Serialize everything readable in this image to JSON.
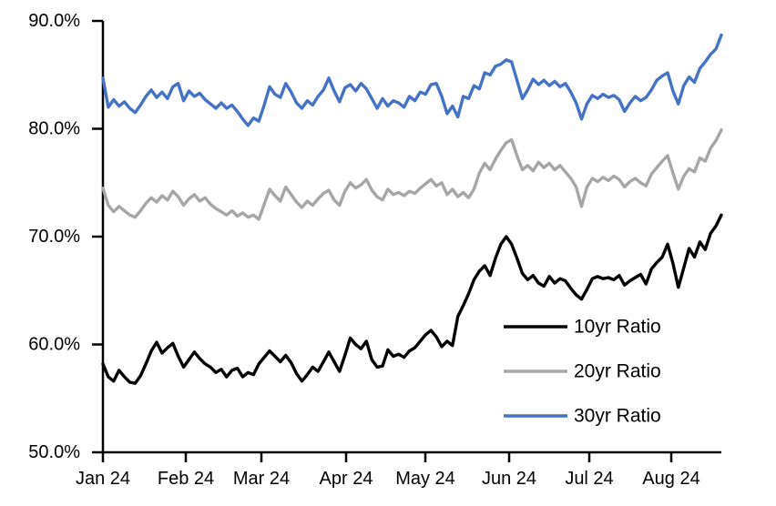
{
  "chart_data": {
    "type": "line",
    "title": "",
    "xlabel": "",
    "ylabel": "",
    "ylim": [
      50,
      90
    ],
    "y_tick_labels": [
      "90.0%",
      "80.0%",
      "70.0%",
      "60.0%",
      "50.0%"
    ],
    "y_tick_values": [
      90,
      80,
      70,
      60,
      50
    ],
    "x_tick_labels": [
      "Jan 24",
      "Feb 24",
      "Mar 24",
      "Apr 24",
      "May 24",
      "Jun 24",
      "Jul 24",
      "Aug 24"
    ],
    "x_range": "daily, Jan 2024 through mid-Aug 2024",
    "grid": "off",
    "legend_position": "inside-right-bottom",
    "axis_color": "#000000",
    "series": [
      {
        "name": "10yr Ratio",
        "color": "#000000",
        "values": [
          58.2,
          57.0,
          56.6,
          57.6,
          57.0,
          56.5,
          56.4,
          57.1,
          58.2,
          59.4,
          60.2,
          59.2,
          59.7,
          60.1,
          58.9,
          57.9,
          58.6,
          59.3,
          58.7,
          58.2,
          57.9,
          57.4,
          57.7,
          57.0,
          57.6,
          57.8,
          57.0,
          57.4,
          57.2,
          58.2,
          58.8,
          59.4,
          58.9,
          58.4,
          59.0,
          58.3,
          57.3,
          56.6,
          57.2,
          57.9,
          57.5,
          58.4,
          59.3,
          58.4,
          57.5,
          59.0,
          60.6,
          60.0,
          59.6,
          60.3,
          58.6,
          57.9,
          58.0,
          59.5,
          58.9,
          59.1,
          58.8,
          59.4,
          59.7,
          60.3,
          60.9,
          61.3,
          60.7,
          59.8,
          60.3,
          59.9,
          62.6,
          63.6,
          64.7,
          66.0,
          66.8,
          67.3,
          66.4,
          68.0,
          69.3,
          70.0,
          69.3,
          68.0,
          66.6,
          66.0,
          66.4,
          65.7,
          65.4,
          66.3,
          65.7,
          66.1,
          65.9,
          65.2,
          64.6,
          64.2,
          65.1,
          66.1,
          66.3,
          66.1,
          66.2,
          66.0,
          66.4,
          65.5,
          65.9,
          66.2,
          66.5,
          65.6,
          67.0,
          67.6,
          68.1,
          69.3,
          67.5,
          65.3,
          67.1,
          68.9,
          68.1,
          69.5,
          68.8,
          70.3,
          71.0,
          72.0
        ]
      },
      {
        "name": "20yr Ratio",
        "color": "#A6A6A6",
        "values": [
          74.5,
          72.9,
          72.3,
          72.8,
          72.4,
          72.0,
          71.8,
          72.4,
          73.1,
          73.6,
          73.2,
          73.8,
          73.4,
          74.2,
          73.7,
          72.9,
          73.5,
          73.9,
          73.3,
          73.6,
          73.0,
          72.6,
          72.3,
          72.0,
          72.4,
          71.9,
          72.2,
          71.8,
          72.0,
          71.6,
          73.0,
          74.4,
          73.8,
          73.3,
          74.6,
          73.9,
          73.2,
          72.7,
          73.3,
          72.9,
          73.5,
          74.0,
          74.3,
          73.4,
          72.9,
          74.2,
          75.0,
          74.5,
          74.8,
          75.3,
          74.3,
          73.7,
          73.4,
          74.4,
          73.9,
          74.1,
          73.8,
          74.2,
          74.0,
          74.5,
          74.9,
          75.3,
          74.7,
          75.0,
          73.9,
          74.4,
          73.7,
          74.1,
          73.6,
          74.4,
          75.9,
          76.8,
          76.2,
          77.2,
          78.0,
          78.7,
          79.0,
          77.5,
          76.2,
          76.6,
          76.1,
          76.9,
          76.4,
          76.8,
          76.2,
          76.6,
          76.0,
          75.4,
          74.6,
          72.8,
          74.6,
          75.4,
          75.1,
          75.5,
          75.2,
          75.6,
          75.3,
          74.6,
          75.1,
          75.4,
          75.0,
          74.7,
          75.8,
          76.4,
          77.0,
          77.5,
          75.9,
          74.4,
          75.6,
          76.3,
          76.0,
          77.3,
          77.0,
          78.2,
          78.9,
          79.9
        ]
      },
      {
        "name": "30yr Ratio",
        "color": "#4472C4",
        "values": [
          84.7,
          82.0,
          82.7,
          82.1,
          82.5,
          81.9,
          81.5,
          82.2,
          83.0,
          83.6,
          82.9,
          83.4,
          82.8,
          83.9,
          84.2,
          82.6,
          83.5,
          83.0,
          83.3,
          82.7,
          82.3,
          81.9,
          82.4,
          81.9,
          82.2,
          81.6,
          80.9,
          80.3,
          81.0,
          80.7,
          82.2,
          83.9,
          83.2,
          82.9,
          84.2,
          83.4,
          82.4,
          81.9,
          82.6,
          82.2,
          83.0,
          83.6,
          84.7,
          83.5,
          82.5,
          83.8,
          84.1,
          83.5,
          84.2,
          83.7,
          82.8,
          81.9,
          82.8,
          82.1,
          82.6,
          82.4,
          82.0,
          83.0,
          82.6,
          83.4,
          83.2,
          84.1,
          84.2,
          83.0,
          81.4,
          82.1,
          81.1,
          83.0,
          82.8,
          84.0,
          83.7,
          85.2,
          85.0,
          85.8,
          86.0,
          86.4,
          86.2,
          84.5,
          82.8,
          83.6,
          84.6,
          84.1,
          84.5,
          84.0,
          84.4,
          83.9,
          84.2,
          83.4,
          82.4,
          80.9,
          82.3,
          83.1,
          82.8,
          83.2,
          82.9,
          83.1,
          82.7,
          81.6,
          82.4,
          83.0,
          82.6,
          82.9,
          83.6,
          84.5,
          84.9,
          85.2,
          83.5,
          82.3,
          84.0,
          84.8,
          84.3,
          85.6,
          86.2,
          86.9,
          87.4,
          88.7
        ]
      }
    ]
  }
}
